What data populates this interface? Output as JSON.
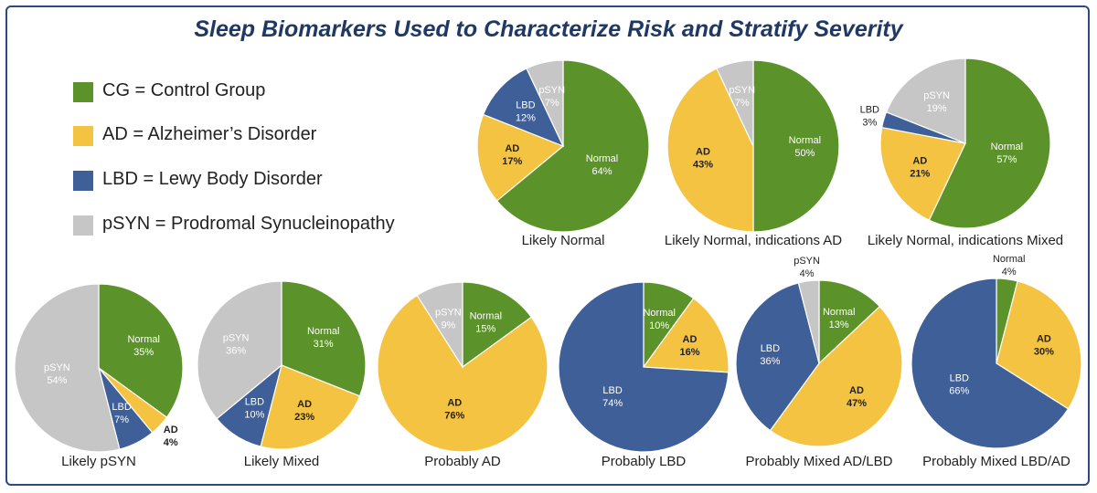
{
  "title": "Sleep Biomarkers Used to Characterize Risk and Stratify Severity",
  "colors": {
    "CG": "#5b9229",
    "AD": "#f5c342",
    "LBD": "#3e5f97",
    "pSYN": "#c6c6c6"
  },
  "legend": [
    {
      "key": "CG",
      "text": "CG = Control Group"
    },
    {
      "key": "AD",
      "text": "AD = Alzheimer’s Disorder"
    },
    {
      "key": "LBD",
      "text": "LBD = Lewy Body Disorder"
    },
    {
      "key": "pSYN",
      "text": "pSYN = Prodromal Synucleinopathy"
    }
  ],
  "chart_data": [
    {
      "type": "pie",
      "title": "Likely Normal",
      "slices": [
        {
          "cat": "CG",
          "name": "Normal",
          "value": 64
        },
        {
          "cat": "AD",
          "name": "AD",
          "value": 17
        },
        {
          "cat": "LBD",
          "name": "LBD",
          "value": 12
        },
        {
          "cat": "pSYN",
          "name": "pSYN",
          "value": 7
        }
      ]
    },
    {
      "type": "pie",
      "title": "Likely Normal, indications AD",
      "slices": [
        {
          "cat": "CG",
          "name": "Normal",
          "value": 50
        },
        {
          "cat": "AD",
          "name": "AD",
          "value": 43
        },
        {
          "cat": "pSYN",
          "name": "pSYN",
          "value": 7
        }
      ]
    },
    {
      "type": "pie",
      "title": "Likely Normal, indications Mixed",
      "slices": [
        {
          "cat": "CG",
          "name": "Normal",
          "value": 57
        },
        {
          "cat": "AD",
          "name": "AD",
          "value": 21
        },
        {
          "cat": "LBD",
          "name": "LBD",
          "value": 3
        },
        {
          "cat": "pSYN",
          "name": "pSYN",
          "value": 19
        }
      ]
    },
    {
      "type": "pie",
      "title": "Likely pSYN",
      "slices": [
        {
          "cat": "CG",
          "name": "Normal",
          "value": 35
        },
        {
          "cat": "AD",
          "name": "AD",
          "value": 4
        },
        {
          "cat": "LBD",
          "name": "LBD",
          "value": 7
        },
        {
          "cat": "pSYN",
          "name": "pSYN",
          "value": 54
        }
      ]
    },
    {
      "type": "pie",
      "title": "Likely Mixed",
      "slices": [
        {
          "cat": "CG",
          "name": "Normal",
          "value": 31
        },
        {
          "cat": "AD",
          "name": "AD",
          "value": 23
        },
        {
          "cat": "LBD",
          "name": "LBD",
          "value": 10
        },
        {
          "cat": "pSYN",
          "name": "pSYN",
          "value": 36
        }
      ]
    },
    {
      "type": "pie",
      "title": "Probably AD",
      "slices": [
        {
          "cat": "CG",
          "name": "Normal",
          "value": 15
        },
        {
          "cat": "AD",
          "name": "AD",
          "value": 76
        },
        {
          "cat": "pSYN",
          "name": "pSYN",
          "value": 9
        }
      ]
    },
    {
      "type": "pie",
      "title": "Probably LBD",
      "slices": [
        {
          "cat": "CG",
          "name": "Normal",
          "value": 10
        },
        {
          "cat": "AD",
          "name": "AD",
          "value": 16
        },
        {
          "cat": "LBD",
          "name": "LBD",
          "value": 74
        }
      ]
    },
    {
      "type": "pie",
      "title": "Probably Mixed AD/LBD",
      "slices": [
        {
          "cat": "CG",
          "name": "Normal",
          "value": 13
        },
        {
          "cat": "AD",
          "name": "AD",
          "value": 47
        },
        {
          "cat": "LBD",
          "name": "LBD",
          "value": 36
        },
        {
          "cat": "pSYN",
          "name": "pSYN",
          "value": 4
        }
      ]
    },
    {
      "type": "pie",
      "title": "Probably Mixed LBD/AD",
      "slices": [
        {
          "cat": "CG",
          "name": "Normal",
          "value": 4
        },
        {
          "cat": "AD",
          "name": "AD",
          "value": 30
        },
        {
          "cat": "LBD",
          "name": "LBD",
          "value": 66
        }
      ]
    }
  ]
}
